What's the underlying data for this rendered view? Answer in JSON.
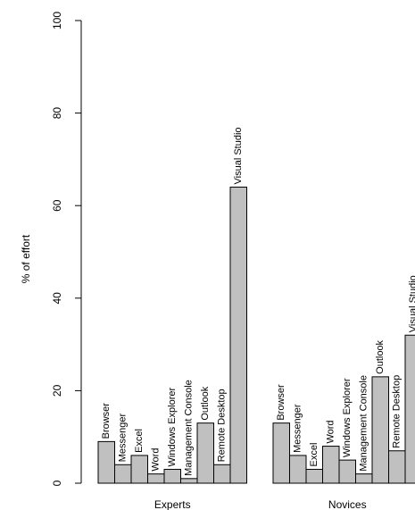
{
  "chart_data": [
    {
      "type": "bar",
      "group": "Experts",
      "categories": [
        "Browser",
        "Messenger",
        "Excel",
        "Word",
        "Windows Explorer",
        "Management Console",
        "Outlook",
        "Remote Desktop",
        "Visual Studio"
      ],
      "values": [
        9,
        4,
        6,
        2,
        3,
        1,
        13,
        4,
        64
      ]
    },
    {
      "type": "bar",
      "group": "Novices",
      "categories": [
        "Browser",
        "Messenger",
        "Excel",
        "Word",
        "Windows Explorer",
        "Management Console",
        "Outlook",
        "Remote Desktop",
        "Visual Studio"
      ],
      "values": [
        13,
        6,
        3,
        8,
        5,
        2,
        23,
        7,
        32
      ]
    }
  ],
  "axes": {
    "ylabel": "% of effort",
    "ylim": [
      0,
      100
    ],
    "y_ticks": [
      "0",
      "20",
      "40",
      "60",
      "80",
      "100"
    ]
  },
  "colors": {
    "bar_fill": "#c0c0c0",
    "bar_stroke": "#000000"
  }
}
